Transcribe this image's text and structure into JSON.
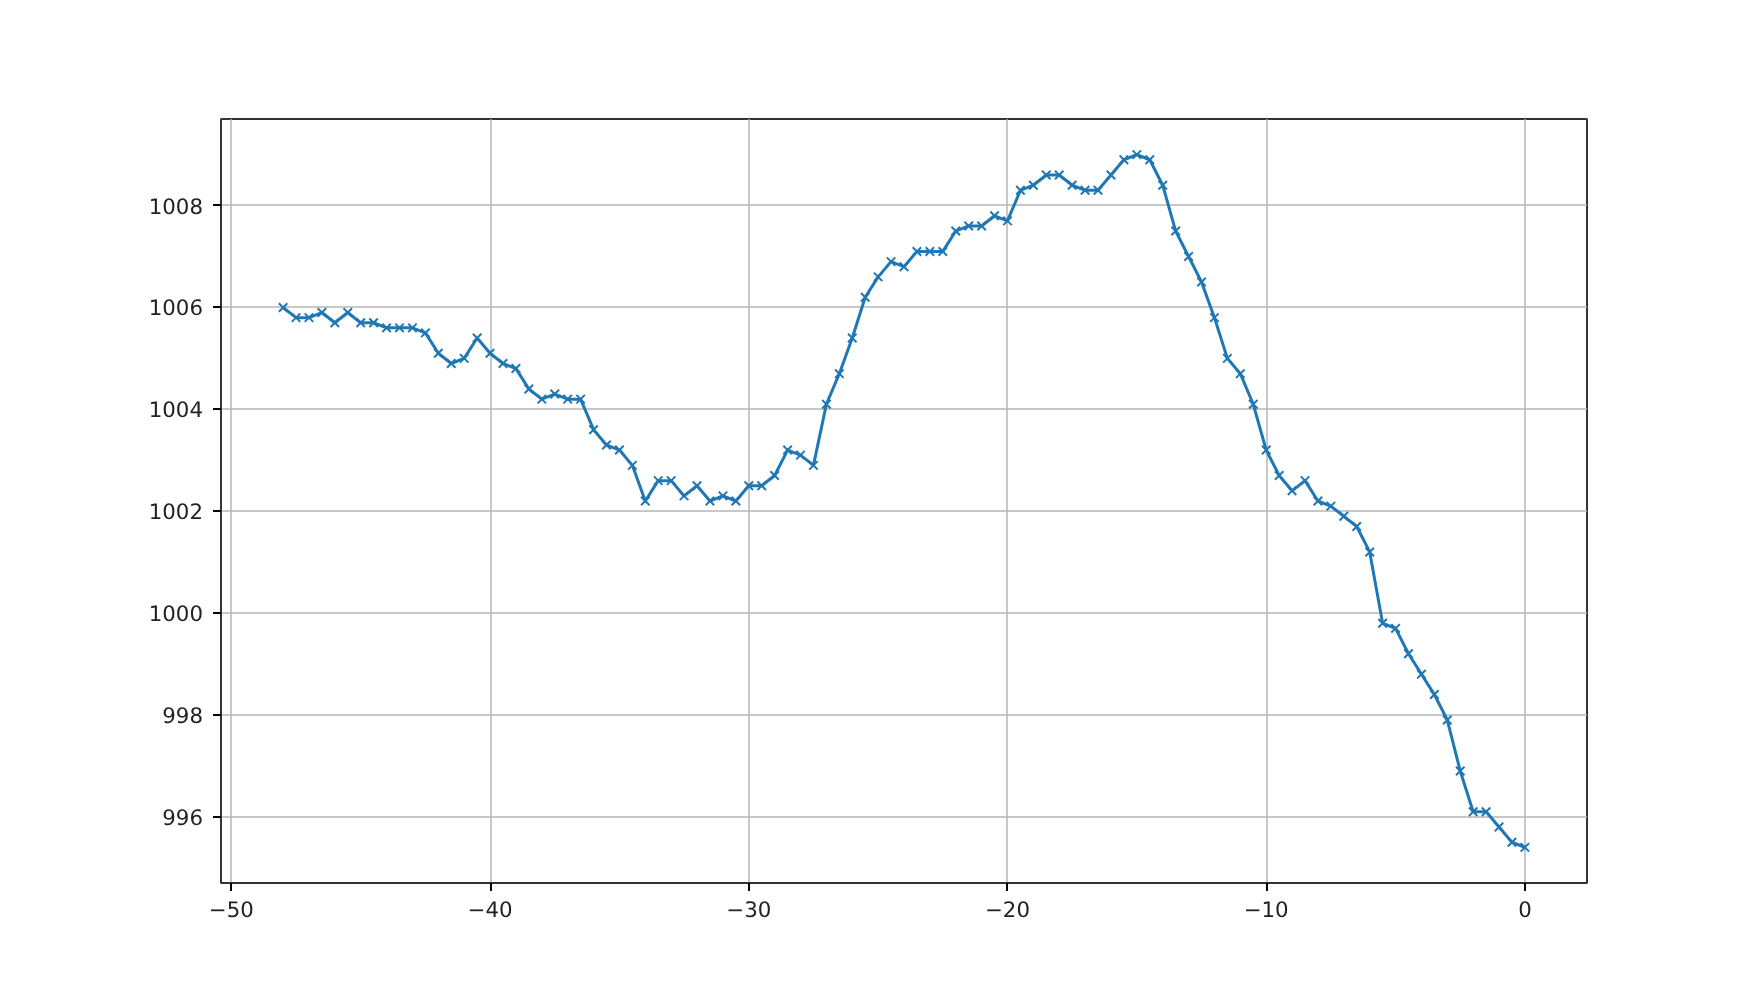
{
  "chart_data": {
    "type": "line",
    "marker": "cross",
    "line_style": "solid",
    "grid": true,
    "xlim": [
      -50.4,
      2.4
    ],
    "ylim": [
      994.7,
      1009.7
    ],
    "xticks": [
      {
        "value": -50,
        "label": "−50"
      },
      {
        "value": -40,
        "label": "−40"
      },
      {
        "value": -30,
        "label": "−30"
      },
      {
        "value": -20,
        "label": "−20"
      },
      {
        "value": -10,
        "label": "−10"
      },
      0
    ],
    "yticks": [
      996,
      998,
      1000,
      1002,
      1004,
      1006,
      1008
    ],
    "x": [
      -48,
      -47.5,
      -47,
      -46.5,
      -46,
      -45.5,
      -45,
      -44.5,
      -44,
      -43.5,
      -43,
      -42.5,
      -42,
      -41.5,
      -41,
      -40.5,
      -40,
      -39.5,
      -39,
      -38.5,
      -38,
      -37.5,
      -37,
      -36.5,
      -36,
      -35.5,
      -35,
      -34.5,
      -34,
      -33.5,
      -33,
      -32.5,
      -32,
      -31.5,
      -31,
      -30.5,
      -30,
      -29.5,
      -29,
      -28.5,
      -28,
      -27.5,
      -27,
      -26.5,
      -26,
      -25.5,
      -25,
      -24.5,
      -24,
      -23.5,
      -23,
      -22.5,
      -22,
      -21.5,
      -21,
      -20.5,
      -20,
      -19.5,
      -19,
      -18.5,
      -18,
      -17.5,
      -17,
      -16.5,
      -16,
      -15.5,
      -15,
      -14.5,
      -14,
      -13.5,
      -13,
      -12.5,
      -12,
      -11.5,
      -11,
      -10.5,
      -10,
      -9.5,
      -9,
      -8.5,
      -8,
      -7.5,
      -7,
      -6.5,
      -6,
      -5.5,
      -5,
      -4.5,
      -4,
      -3.5,
      -3,
      -2.5,
      -2,
      -1.5,
      -1,
      -0.5,
      0
    ],
    "series": [
      {
        "color": "#1f77b4",
        "values": [
          1006.0,
          1005.8,
          1005.8,
          1005.9,
          1005.7,
          1005.9,
          1005.7,
          1005.7,
          1005.6,
          1005.6,
          1005.6,
          1005.5,
          1005.1,
          1004.9,
          1005.0,
          1005.4,
          1005.1,
          1004.9,
          1004.8,
          1004.4,
          1004.2,
          1004.3,
          1004.2,
          1004.2,
          1003.6,
          1003.3,
          1003.2,
          1002.9,
          1002.2,
          1002.6,
          1002.6,
          1002.3,
          1002.5,
          1002.2,
          1002.3,
          1002.2,
          1002.5,
          1002.5,
          1002.7,
          1003.2,
          1003.1,
          1002.9,
          1004.1,
          1004.7,
          1005.4,
          1006.2,
          1006.6,
          1006.9,
          1006.8,
          1007.1,
          1007.1,
          1007.1,
          1007.5,
          1007.6,
          1007.6,
          1007.8,
          1007.7,
          1008.3,
          1008.4,
          1008.6,
          1008.6,
          1008.4,
          1008.3,
          1008.3,
          1008.6,
          1008.9,
          1009.0,
          1008.9,
          1008.4,
          1007.5,
          1007.0,
          1006.5,
          1005.8,
          1005.0,
          1004.7,
          1004.1,
          1003.2,
          1002.7,
          1002.4,
          1002.6,
          1002.2,
          1002.1,
          1001.9,
          1001.7,
          1001.2,
          999.8,
          999.7,
          999.2,
          998.8,
          998.4,
          997.9,
          996.9,
          996.1,
          996.1,
          995.8,
          995.5,
          995.4
        ]
      }
    ]
  }
}
